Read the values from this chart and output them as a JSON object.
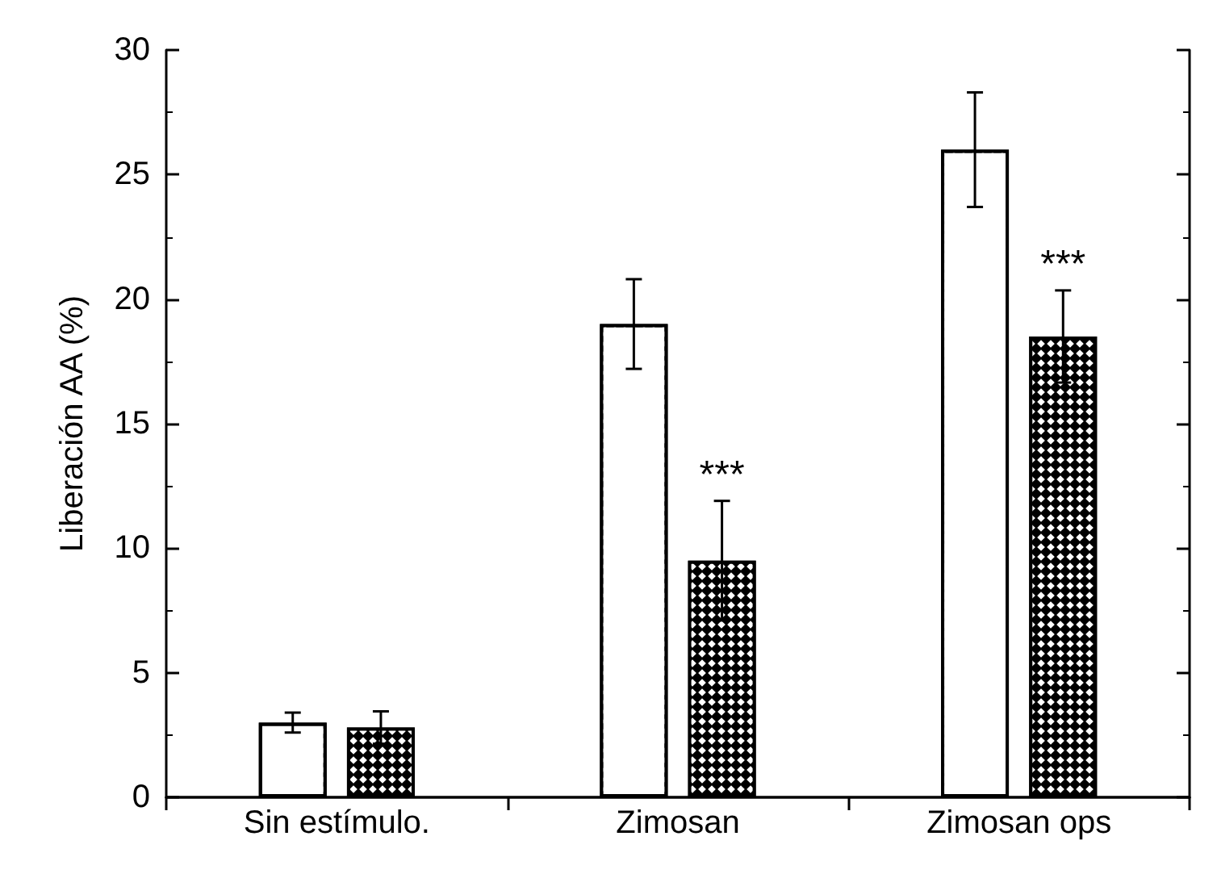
{
  "chart_data": {
    "type": "bar",
    "ylabel": "Liberación AA (%)",
    "categories": [
      "Sin estímulo.",
      "Zimosan",
      "Zimosan ops"
    ],
    "series": [
      {
        "color": "#ffffff",
        "values": [
          3,
          19,
          26
        ],
        "errors": [
          0.4,
          1.8,
          2.3
        ]
      },
      {
        "color": "#000000",
        "values": [
          2.8,
          9.5,
          18.5
        ],
        "errors": [
          0.65,
          2.4,
          1.85
        ]
      }
    ],
    "ylim": [
      0,
      30
    ],
    "yticks": [
      0,
      5,
      10,
      15,
      20,
      25,
      30
    ],
    "grid": false,
    "annotations": [
      "***",
      "***"
    ]
  }
}
